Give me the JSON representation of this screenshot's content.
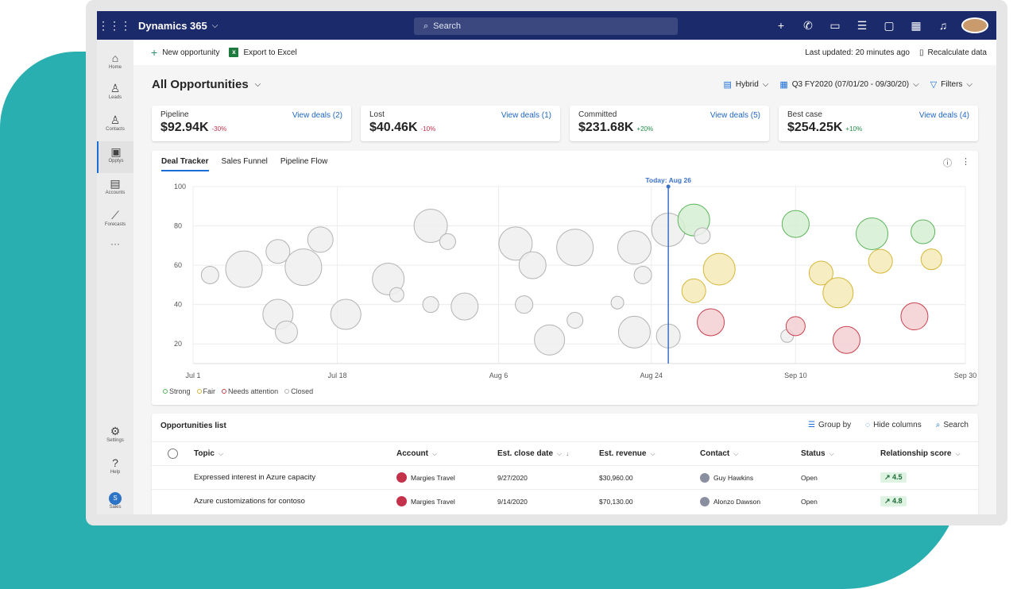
{
  "topbar": {
    "app_title": "Dynamics 365",
    "search_placeholder": "Search",
    "icons": [
      "plus-icon",
      "phone-icon",
      "chat-icon",
      "tasks-icon",
      "notes-icon",
      "calendar-icon",
      "bell-icon",
      "user-avatar"
    ]
  },
  "rail": {
    "items": [
      {
        "label": "Home",
        "icon": "home-icon"
      },
      {
        "label": "Leads",
        "icon": "leads-icon"
      },
      {
        "label": "Contacts",
        "icon": "contacts-icon"
      },
      {
        "label": "Opptys",
        "icon": "briefcase-icon",
        "active": true
      },
      {
        "label": "Accounts",
        "icon": "accounts-icon"
      },
      {
        "label": "Forecasts",
        "icon": "chart-icon"
      },
      {
        "label": "Settings",
        "icon": "gear-icon"
      },
      {
        "label": "Help",
        "icon": "help-icon"
      },
      {
        "label": "Sales",
        "icon": "sales-avatar",
        "badge": "S"
      }
    ]
  },
  "cmdbar": {
    "new_opportunity": "New opportunity",
    "export_excel": "Export to Excel",
    "last_updated": "Last updated: 20 minutes ago",
    "recalculate": "Recalculate data"
  },
  "view": {
    "title": "All Opportunities",
    "layout": "Hybrid",
    "period": "Q3 FY2020 (07/01/20 - 09/30/20)",
    "filters": "Filters"
  },
  "kpis": [
    {
      "label": "Pipeline",
      "value": "$92.94K",
      "delta": "-30%",
      "link": "View deals (2)",
      "trend": "neg"
    },
    {
      "label": "Lost",
      "value": "$40.46K",
      "delta": "-10%",
      "link": "View deals (1)",
      "trend": "neg"
    },
    {
      "label": "Committed",
      "value": "$231.68K",
      "delta": "+20%",
      "link": "View deals (5)",
      "trend": "pos"
    },
    {
      "label": "Best case",
      "value": "$254.25K",
      "delta": "+10%",
      "link": "View deals (4)",
      "trend": "pos"
    }
  ],
  "chart_tabs": [
    "Deal Tracker",
    "Sales Funnel",
    "Pipeline Flow"
  ],
  "chart_data": {
    "type": "scatter",
    "today_label": "Today: Aug 26",
    "x_ticks": [
      "Jul 1",
      "Jul 18",
      "Aug 6",
      "Aug 24",
      "Sep 10",
      "Sep 30"
    ],
    "y_ticks": [
      100,
      80,
      60,
      40,
      20
    ],
    "ylim": [
      10,
      100
    ],
    "legend": [
      {
        "name": "Strong",
        "color": "#5bb55b"
      },
      {
        "name": "Fair",
        "color": "#d4b73a"
      },
      {
        "name": "Needs attention",
        "color": "#c8414f"
      },
      {
        "name": "Closed",
        "color": "#b3b3b3"
      }
    ],
    "points": [
      {
        "x": "Jul 3",
        "y": 55,
        "s": "closed",
        "r": 11
      },
      {
        "x": "Jul 7",
        "y": 58,
        "s": "closed",
        "r": 23
      },
      {
        "x": "Jul 11",
        "y": 67,
        "s": "closed",
        "r": 15
      },
      {
        "x": "Jul 11",
        "y": 35,
        "s": "closed",
        "r": 19
      },
      {
        "x": "Jul 12",
        "y": 26,
        "s": "closed",
        "r": 14
      },
      {
        "x": "Jul 14",
        "y": 59,
        "s": "closed",
        "r": 23
      },
      {
        "x": "Jul 16",
        "y": 73,
        "s": "closed",
        "r": 16
      },
      {
        "x": "Jul 19",
        "y": 35,
        "s": "closed",
        "r": 19
      },
      {
        "x": "Jul 24",
        "y": 53,
        "s": "closed",
        "r": 20
      },
      {
        "x": "Jul 25",
        "y": 45,
        "s": "closed",
        "r": 9
      },
      {
        "x": "Jul 29",
        "y": 80,
        "s": "closed",
        "r": 21
      },
      {
        "x": "Jul 29",
        "y": 40,
        "s": "closed",
        "r": 10
      },
      {
        "x": "Jul 31",
        "y": 72,
        "s": "closed",
        "r": 10
      },
      {
        "x": "Aug 2",
        "y": 39,
        "s": "closed",
        "r": 17
      },
      {
        "x": "Aug 8",
        "y": 71,
        "s": "closed",
        "r": 21
      },
      {
        "x": "Aug 9",
        "y": 40,
        "s": "closed",
        "r": 11
      },
      {
        "x": "Aug 10",
        "y": 60,
        "s": "closed",
        "r": 17
      },
      {
        "x": "Aug 12",
        "y": 22,
        "s": "closed",
        "r": 19
      },
      {
        "x": "Aug 15",
        "y": 69,
        "s": "closed",
        "r": 23
      },
      {
        "x": "Aug 15",
        "y": 32,
        "s": "closed",
        "r": 10
      },
      {
        "x": "Aug 20",
        "y": 41,
        "s": "closed",
        "r": 8
      },
      {
        "x": "Aug 22",
        "y": 69,
        "s": "closed",
        "r": 21
      },
      {
        "x": "Aug 22",
        "y": 26,
        "s": "closed",
        "r": 20
      },
      {
        "x": "Aug 23",
        "y": 55,
        "s": "closed",
        "r": 11
      },
      {
        "x": "Aug 26",
        "y": 78,
        "s": "closed",
        "r": 21
      },
      {
        "x": "Aug 26",
        "y": 24,
        "s": "closed",
        "r": 15
      },
      {
        "x": "Aug 29",
        "y": 83,
        "s": "strong",
        "r": 20
      },
      {
        "x": "Aug 30",
        "y": 75,
        "s": "closed",
        "r": 10
      },
      {
        "x": "Aug 29",
        "y": 47,
        "s": "fair",
        "r": 15
      },
      {
        "x": "Sep 1",
        "y": 58,
        "s": "fair",
        "r": 20
      },
      {
        "x": "Aug 31",
        "y": 31,
        "s": "attention",
        "r": 17
      },
      {
        "x": "Sep 9",
        "y": 24,
        "s": "closed",
        "r": 8
      },
      {
        "x": "Sep 10",
        "y": 81,
        "s": "strong",
        "r": 17
      },
      {
        "x": "Sep 10",
        "y": 29,
        "s": "attention",
        "r": 12
      },
      {
        "x": "Sep 13",
        "y": 56,
        "s": "fair",
        "r": 15
      },
      {
        "x": "Sep 15",
        "y": 46,
        "s": "fair",
        "r": 19
      },
      {
        "x": "Sep 16",
        "y": 22,
        "s": "attention",
        "r": 17
      },
      {
        "x": "Sep 19",
        "y": 76,
        "s": "strong",
        "r": 20
      },
      {
        "x": "Sep 20",
        "y": 62,
        "s": "fair",
        "r": 15
      },
      {
        "x": "Sep 24",
        "y": 34,
        "s": "attention",
        "r": 17
      },
      {
        "x": "Sep 25",
        "y": 77,
        "s": "strong",
        "r": 15
      },
      {
        "x": "Sep 26",
        "y": 63,
        "s": "fair",
        "r": 13
      }
    ]
  },
  "list": {
    "title": "Opportunities list",
    "group_by": "Group by",
    "hide_columns": "Hide columns",
    "search": "Search",
    "columns": [
      "Topic",
      "Account",
      "Est. close date",
      "Est. revenue",
      "Contact",
      "Status",
      "Relationship score"
    ],
    "rows": [
      {
        "topic": "Expressed interest in Azure capacity",
        "account": "Margies Travel",
        "close": "9/27/2020",
        "revenue": "$30,960.00",
        "contact": "Guy Hawkins",
        "status": "Open",
        "score": "4.5"
      },
      {
        "topic": "Azure customizations for contoso",
        "account": "Margies Travel",
        "close": "9/14/2020",
        "revenue": "$70,130.00",
        "contact": "Alonzo Dawson",
        "status": "Open",
        "score": "4.8"
      }
    ]
  }
}
